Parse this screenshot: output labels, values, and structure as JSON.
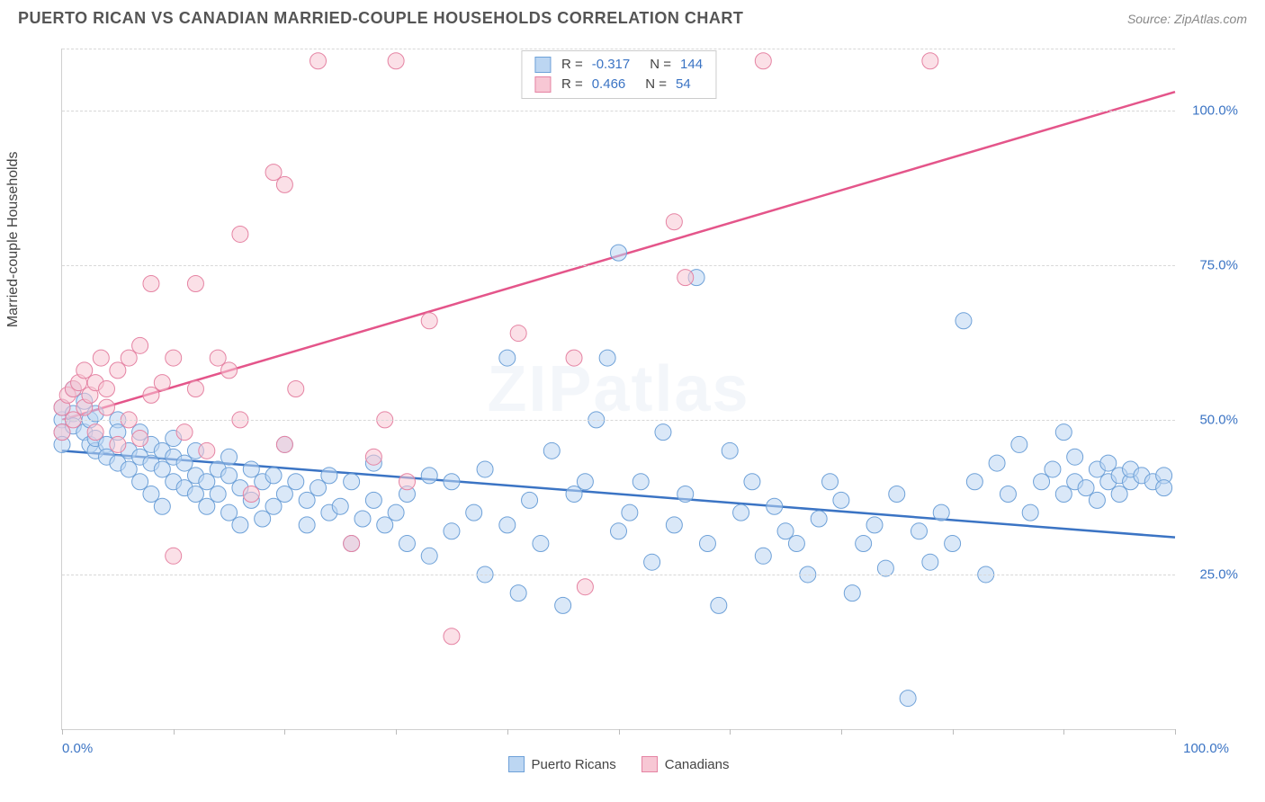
{
  "header": {
    "title": "PUERTO RICAN VS CANADIAN MARRIED-COUPLE HOUSEHOLDS CORRELATION CHART",
    "source": "Source: ZipAtlas.com"
  },
  "chart": {
    "type": "scatter",
    "ylabel": "Married-couple Households",
    "watermark": "ZIPatlas",
    "xlim": [
      0,
      100
    ],
    "ylim": [
      0,
      110
    ],
    "ytick_positions": [
      25,
      50,
      75,
      100
    ],
    "ytick_labels": [
      "25.0%",
      "50.0%",
      "75.0%",
      "100.0%"
    ],
    "xtick_positions": [
      0,
      10,
      20,
      30,
      40,
      50,
      60,
      70,
      80,
      90,
      100
    ],
    "xtick_end_labels": {
      "left": "0.0%",
      "right": "100.0%"
    },
    "grid_color": "#d8d8d8",
    "background_color": "#ffffff",
    "series": [
      {
        "name": "Puerto Ricans",
        "color_fill": "#bcd6f2",
        "color_stroke": "#6ea1d8",
        "marker_radius": 9,
        "fill_opacity": 0.55,
        "regression": {
          "R": "-0.317",
          "N": "144",
          "x1": 0,
          "y1": 45,
          "x2": 100,
          "y2": 31,
          "line_color": "#3b74c4",
          "line_width": 2.5
        },
        "points": [
          [
            0,
            50
          ],
          [
            0,
            48
          ],
          [
            0,
            46
          ],
          [
            0,
            52
          ],
          [
            1,
            51
          ],
          [
            1,
            55
          ],
          [
            1,
            49
          ],
          [
            2,
            48
          ],
          [
            2,
            53
          ],
          [
            2.5,
            46
          ],
          [
            2.5,
            50
          ],
          [
            3,
            51
          ],
          [
            3,
            45
          ],
          [
            3,
            47
          ],
          [
            4,
            46
          ],
          [
            4,
            44
          ],
          [
            5,
            50
          ],
          [
            5,
            43
          ],
          [
            5,
            48
          ],
          [
            6,
            45
          ],
          [
            6,
            42
          ],
          [
            7,
            44
          ],
          [
            7,
            40
          ],
          [
            7,
            48
          ],
          [
            8,
            43
          ],
          [
            8,
            38
          ],
          [
            8,
            46
          ],
          [
            9,
            42
          ],
          [
            9,
            45
          ],
          [
            9,
            36
          ],
          [
            10,
            44
          ],
          [
            10,
            40
          ],
          [
            10,
            47
          ],
          [
            11,
            39
          ],
          [
            11,
            43
          ],
          [
            12,
            38
          ],
          [
            12,
            41
          ],
          [
            12,
            45
          ],
          [
            13,
            40
          ],
          [
            13,
            36
          ],
          [
            14,
            42
          ],
          [
            14,
            38
          ],
          [
            15,
            41
          ],
          [
            15,
            44
          ],
          [
            15,
            35
          ],
          [
            16,
            39
          ],
          [
            16,
            33
          ],
          [
            17,
            42
          ],
          [
            17,
            37
          ],
          [
            18,
            40
          ],
          [
            18,
            34
          ],
          [
            19,
            41
          ],
          [
            19,
            36
          ],
          [
            20,
            38
          ],
          [
            20,
            46
          ],
          [
            21,
            40
          ],
          [
            22,
            37
          ],
          [
            22,
            33
          ],
          [
            23,
            39
          ],
          [
            24,
            35
          ],
          [
            24,
            41
          ],
          [
            25,
            36
          ],
          [
            26,
            40
          ],
          [
            26,
            30
          ],
          [
            27,
            34
          ],
          [
            28,
            37
          ],
          [
            28,
            43
          ],
          [
            29,
            33
          ],
          [
            30,
            35
          ],
          [
            31,
            38
          ],
          [
            31,
            30
          ],
          [
            33,
            41
          ],
          [
            33,
            28
          ],
          [
            35,
            32
          ],
          [
            35,
            40
          ],
          [
            37,
            35
          ],
          [
            38,
            25
          ],
          [
            38,
            42
          ],
          [
            40,
            33
          ],
          [
            40,
            60
          ],
          [
            41,
            22
          ],
          [
            42,
            37
          ],
          [
            43,
            30
          ],
          [
            44,
            45
          ],
          [
            45,
            20
          ],
          [
            46,
            38
          ],
          [
            47,
            40
          ],
          [
            48,
            50
          ],
          [
            49,
            60
          ],
          [
            50,
            32
          ],
          [
            50,
            77
          ],
          [
            51,
            35
          ],
          [
            52,
            40
          ],
          [
            53,
            27
          ],
          [
            54,
            48
          ],
          [
            55,
            33
          ],
          [
            56,
            38
          ],
          [
            57,
            73
          ],
          [
            58,
            30
          ],
          [
            59,
            20
          ],
          [
            60,
            45
          ],
          [
            61,
            35
          ],
          [
            62,
            40
          ],
          [
            63,
            28
          ],
          [
            64,
            36
          ],
          [
            65,
            32
          ],
          [
            66,
            30
          ],
          [
            67,
            25
          ],
          [
            68,
            34
          ],
          [
            69,
            40
          ],
          [
            70,
            37
          ],
          [
            71,
            22
          ],
          [
            72,
            30
          ],
          [
            73,
            33
          ],
          [
            74,
            26
          ],
          [
            75,
            38
          ],
          [
            76,
            5
          ],
          [
            77,
            32
          ],
          [
            78,
            27
          ],
          [
            79,
            35
          ],
          [
            80,
            30
          ],
          [
            81,
            66
          ],
          [
            82,
            40
          ],
          [
            83,
            25
          ],
          [
            84,
            43
          ],
          [
            85,
            38
          ],
          [
            86,
            46
          ],
          [
            87,
            35
          ],
          [
            88,
            40
          ],
          [
            89,
            42
          ],
          [
            90,
            38
          ],
          [
            90,
            48
          ],
          [
            91,
            40
          ],
          [
            91,
            44
          ],
          [
            92,
            39
          ],
          [
            93,
            42
          ],
          [
            93,
            37
          ],
          [
            94,
            40
          ],
          [
            94,
            43
          ],
          [
            95,
            41
          ],
          [
            95,
            38
          ],
          [
            96,
            40
          ],
          [
            96,
            42
          ],
          [
            97,
            41
          ],
          [
            98,
            40
          ],
          [
            99,
            41
          ],
          [
            99,
            39
          ]
        ]
      },
      {
        "name": "Canadians",
        "color_fill": "#f7c7d4",
        "color_stroke": "#e583a3",
        "marker_radius": 9,
        "fill_opacity": 0.55,
        "regression": {
          "R": "0.466",
          "N": "54",
          "x1": 0,
          "y1": 50,
          "x2": 100,
          "y2": 103,
          "line_color": "#e4558a",
          "line_width": 2.5
        },
        "points": [
          [
            0,
            52
          ],
          [
            0,
            48
          ],
          [
            0.5,
            54
          ],
          [
            1,
            55
          ],
          [
            1,
            50
          ],
          [
            1.5,
            56
          ],
          [
            2,
            52
          ],
          [
            2,
            58
          ],
          [
            2.5,
            54
          ],
          [
            3,
            56
          ],
          [
            3,
            48
          ],
          [
            3.5,
            60
          ],
          [
            4,
            52
          ],
          [
            4,
            55
          ],
          [
            5,
            58
          ],
          [
            5,
            46
          ],
          [
            6,
            60
          ],
          [
            6,
            50
          ],
          [
            7,
            62
          ],
          [
            7,
            47
          ],
          [
            8,
            54
          ],
          [
            8,
            72
          ],
          [
            9,
            56
          ],
          [
            10,
            60
          ],
          [
            10,
            28
          ],
          [
            11,
            48
          ],
          [
            12,
            55
          ],
          [
            12,
            72
          ],
          [
            13,
            45
          ],
          [
            14,
            60
          ],
          [
            15,
            58
          ],
          [
            16,
            50
          ],
          [
            16,
            80
          ],
          [
            17,
            38
          ],
          [
            19,
            90
          ],
          [
            20,
            46
          ],
          [
            20,
            88
          ],
          [
            21,
            55
          ],
          [
            23,
            108
          ],
          [
            26,
            30
          ],
          [
            28,
            44
          ],
          [
            29,
            50
          ],
          [
            30,
            108
          ],
          [
            31,
            40
          ],
          [
            33,
            66
          ],
          [
            35,
            15
          ],
          [
            41,
            64
          ],
          [
            46,
            60
          ],
          [
            47,
            23
          ],
          [
            55,
            82
          ],
          [
            56,
            73
          ],
          [
            63,
            108
          ],
          [
            78,
            108
          ]
        ]
      }
    ],
    "legend": {
      "items": [
        {
          "label": "Puerto Ricans",
          "fill": "#bcd6f2",
          "stroke": "#6ea1d8"
        },
        {
          "label": "Canadians",
          "fill": "#f7c7d4",
          "stroke": "#e583a3"
        }
      ]
    },
    "stats_box": {
      "rows": [
        {
          "swatch_fill": "#bcd6f2",
          "swatch_stroke": "#6ea1d8",
          "R": "-0.317",
          "N": "144"
        },
        {
          "swatch_fill": "#f7c7d4",
          "swatch_stroke": "#e583a3",
          "R": "0.466",
          "N": "54"
        }
      ]
    }
  }
}
